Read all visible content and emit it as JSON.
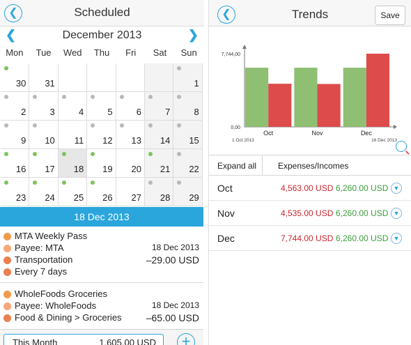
{
  "scheduled": {
    "title": "Scheduled",
    "month_label": "December 2013",
    "weekdays": [
      "Mon",
      "Tue",
      "Wed",
      "Thu",
      "Fri",
      "Sat",
      "Sun"
    ],
    "weeks": [
      [
        {
          "d": "30",
          "dot": "green"
        },
        {
          "d": "31",
          "dot": ""
        },
        {
          "d": "",
          "dot": ""
        },
        {
          "d": "",
          "dot": ""
        },
        {
          "d": "",
          "dot": ""
        },
        {
          "d": "",
          "dot": "",
          "we": true
        },
        {
          "d": "1",
          "dot": "grey",
          "we": true
        }
      ],
      [
        {
          "d": "2",
          "dot": "grey"
        },
        {
          "d": "3",
          "dot": "grey"
        },
        {
          "d": "4",
          "dot": "grey"
        },
        {
          "d": "5",
          "dot": "grey"
        },
        {
          "d": "6",
          "dot": "grey"
        },
        {
          "d": "7",
          "dot": "grey",
          "we": true
        },
        {
          "d": "8",
          "dot": "grey",
          "we": true
        }
      ],
      [
        {
          "d": "9",
          "dot": "grey"
        },
        {
          "d": "10",
          "dot": "grey"
        },
        {
          "d": "11",
          "dot": ""
        },
        {
          "d": "12",
          "dot": "grey"
        },
        {
          "d": "13",
          "dot": "grey"
        },
        {
          "d": "14",
          "dot": "grey",
          "we": true
        },
        {
          "d": "15",
          "dot": "grey",
          "we": true
        }
      ],
      [
        {
          "d": "16",
          "dot": "green"
        },
        {
          "d": "17",
          "dot": "green"
        },
        {
          "d": "18",
          "dot": "green",
          "sel": true
        },
        {
          "d": "19",
          "dot": "green"
        },
        {
          "d": "20",
          "dot": ""
        },
        {
          "d": "21",
          "dot": "green",
          "we": true
        },
        {
          "d": "22",
          "dot": "grey",
          "we": true
        }
      ],
      [
        {
          "d": "23",
          "dot": "green"
        },
        {
          "d": "24",
          "dot": "green"
        },
        {
          "d": "25",
          "dot": "green"
        },
        {
          "d": "26",
          "dot": "green"
        },
        {
          "d": "27",
          "dot": ""
        },
        {
          "d": "28",
          "dot": "grey",
          "we": true
        },
        {
          "d": "29",
          "dot": "grey",
          "we": true
        }
      ]
    ],
    "selected_date": "18 Dec 2013",
    "entries": [
      {
        "name": "MTA Weekly Pass",
        "payee": "Payee: MTA",
        "category": "Transportation",
        "repeat": "Every 7 days",
        "date": "18 Dec 2013",
        "amount": "–29.00 USD"
      },
      {
        "name": "WholeFoods Groceries",
        "payee": "Payee: WholeFoods",
        "category": "Food & Dining > Groceries",
        "repeat": "",
        "date": "18 Dec 2013",
        "amount": "–65.00 USD"
      }
    ],
    "footer": {
      "label": "This Month",
      "value": "1,605.00 USD"
    }
  },
  "trends": {
    "title": "Trends",
    "save_label": "Save",
    "tabs": [
      "Expand all",
      "Expenses/Incomes"
    ],
    "rows": [
      {
        "month": "Oct",
        "expense": "4,563.00 USD",
        "income": "6,260.00 USD"
      },
      {
        "month": "Nov",
        "expense": "4,535.00 USD",
        "income": "6,260.00 USD"
      },
      {
        "month": "Dec",
        "expense": "7,744.00 USD",
        "income": "6,260.00 USD"
      }
    ]
  },
  "chart_data": {
    "type": "bar",
    "categories": [
      "Oct",
      "Nov",
      "Dec"
    ],
    "series": [
      {
        "values": [
          6260,
          6260,
          6260
        ],
        "color": "#8fbf73"
      },
      {
        "values": [
          4563,
          4535,
          7744
        ],
        "color": "#dd4b4b"
      }
    ],
    "y_tick_labels": [
      "0,00",
      "7,744,00"
    ],
    "ylim": [
      0,
      7744
    ],
    "x_start_label": "1 Oct 2013",
    "x_end_label": "16 Dec 2013",
    "grid": false
  },
  "colors": {
    "accent": "#2aa6dc",
    "expense": "#c8282f",
    "income": "#3a9e3a"
  }
}
